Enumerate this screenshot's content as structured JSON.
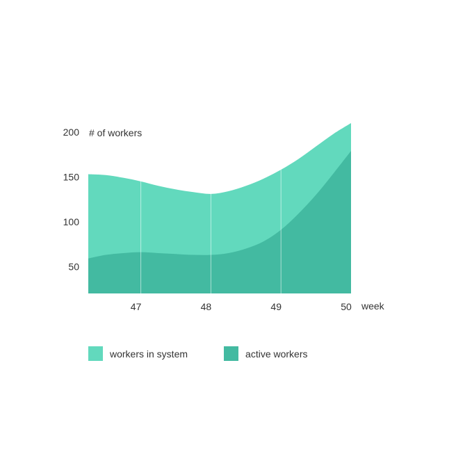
{
  "chart_data": {
    "type": "area",
    "title": "",
    "ylabel": "# of workers",
    "xlabel": "week",
    "x": [
      46.25,
      46.5,
      46.75,
      47,
      47.25,
      47.5,
      47.75,
      48,
      48.25,
      48.5,
      48.75,
      49,
      49.25,
      49.5,
      49.75,
      50
    ],
    "x_ticks": [
      47,
      48,
      49,
      50
    ],
    "y_ticks": [
      50,
      100,
      150,
      200
    ],
    "xlim": [
      46.25,
      50
    ],
    "ylim": [
      20,
      210
    ],
    "stacked": false,
    "grid": "vertical lines at week ticks",
    "legend_position": "bottom",
    "series": [
      {
        "name": "workers in system",
        "color": "#62d9bd",
        "values": [
          153,
          152,
          149,
          145,
          140,
          136,
          133,
          131,
          134,
          140,
          148,
          158,
          170,
          184,
          198,
          210
        ]
      },
      {
        "name": "active workers",
        "color": "#43baa1",
        "values": [
          59,
          63,
          65,
          66,
          65,
          64,
          63,
          63,
          65,
          70,
          78,
          91,
          109,
          130,
          154,
          179
        ]
      }
    ]
  }
}
